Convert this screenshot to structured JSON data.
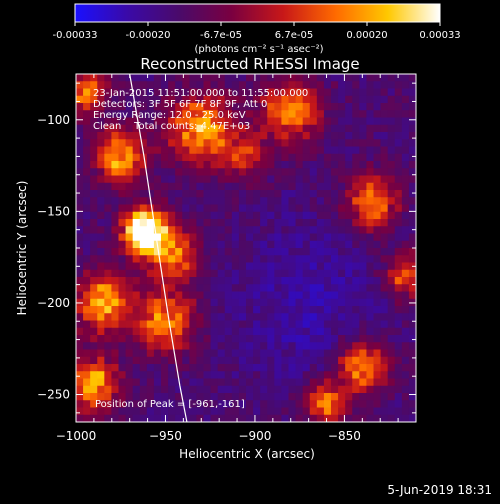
{
  "colorbar": {
    "colors": [
      "#1a10ff",
      "#3a0aa8",
      "#4a0a6a",
      "#7a0040",
      "#c81818",
      "#ff6a00",
      "#ffc800",
      "#ffffff"
    ],
    "ticks": [
      "-0.00033",
      "-0.00020",
      "-6.7e-05",
      "6.7e-05",
      "0.00020",
      "0.00033"
    ],
    "label": "(photons cm⁻² s⁻¹ asec⁻²)"
  },
  "chart_data": {
    "type": "heatmap",
    "title": "Reconstructed RHESSI Image",
    "xlabel": "Heliocentric X (arcsec)",
    "ylabel": "Heliocentric Y (arcsec)",
    "xlim": [
      -1000,
      -810
    ],
    "ylim": [
      -265,
      -75
    ],
    "x_ticks": [
      -1000,
      -950,
      -900,
      -850
    ],
    "y_ticks": [
      -250,
      -200,
      -150,
      -100
    ],
    "x_tick_labels": [
      "−1000",
      "−950",
      "−900",
      "−850"
    ],
    "y_tick_labels": [
      "−250",
      "−200",
      "−150",
      "−100"
    ],
    "value_range": [
      -0.00033,
      0.00033
    ],
    "peak_position": [
      -961,
      -161
    ],
    "limb_curve": {
      "x": [
        -970,
        -962,
        -955,
        -948,
        -942,
        -938
      ],
      "y": [
        -75,
        -120,
        -165,
        -210,
        -245,
        -265
      ]
    },
    "annotations": [
      "23-Jan-2015 11:51:00.000 to 11:55:00.000",
      "Detectors: 3F 5F 6F 7F 8F 9F, Att 0",
      "Energy Range: 12.0 - 25.0 keV",
      "Clean    Total counts: 4.47E+03",
      "Position of Peak = [-961,-161]"
    ]
  },
  "footer": {
    "date": "5-Jun-2019 18:31"
  }
}
